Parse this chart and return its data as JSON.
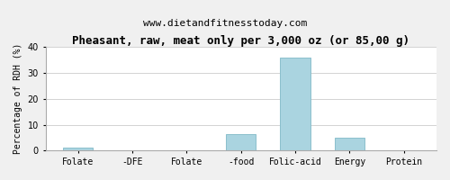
{
  "title": "Pheasant, raw, meat only per 3,000 oz (or 85,00 g)",
  "subtitle": "www.dietandfitnesstoday.com",
  "ylabel": "Percentage of RDH (%)",
  "categories": [
    "Folate",
    "-DFE",
    "Folate",
    "-food",
    "Folic-acid",
    "Energy",
    "Protein"
  ],
  "values": [
    1.0,
    0.0,
    0.0,
    6.5,
    36.0,
    5.0,
    0.0
  ],
  "bar_color": "#aad4e0",
  "bar_edge_color": "#8bbfcc",
  "ylim": [
    0,
    40
  ],
  "yticks": [
    0,
    10,
    20,
    30,
    40
  ],
  "background_color": "#f0f0f0",
  "plot_bg_color": "#ffffff",
  "title_fontsize": 9,
  "subtitle_fontsize": 8,
  "ylabel_fontsize": 7,
  "tick_fontsize": 7,
  "grid_color": "#cccccc"
}
